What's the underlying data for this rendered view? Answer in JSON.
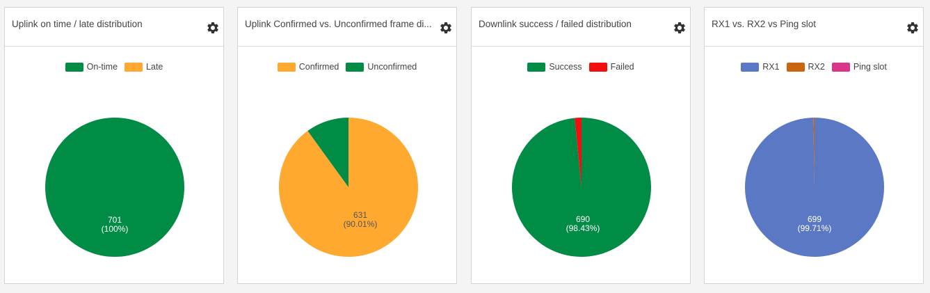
{
  "panels": [
    {
      "title": "Uplink on time / late distribution",
      "settings_icon": "gear-icon",
      "legend": [
        {
          "label": "On-time",
          "color": "#008c45"
        },
        {
          "label": "Late",
          "color": "#ffa931"
        }
      ]
    },
    {
      "title": "Uplink Confirmed vs. Unconfirmed frame di...",
      "settings_icon": "gear-icon",
      "legend": [
        {
          "label": "Confirmed",
          "color": "#ffa931"
        },
        {
          "label": "Unconfirmed",
          "color": "#008c45"
        }
      ]
    },
    {
      "title": "Downlink success / failed distribution",
      "settings_icon": "gear-icon",
      "legend": [
        {
          "label": "Success",
          "color": "#008c45"
        },
        {
          "label": "Failed",
          "color": "#f20f0f"
        }
      ]
    },
    {
      "title": "RX1 vs. RX2 vs Ping slot",
      "settings_icon": "gear-icon",
      "legend": [
        {
          "label": "RX1",
          "color": "#5b78c4"
        },
        {
          "label": "RX2",
          "color": "#c9650f"
        },
        {
          "label": "Ping slot",
          "color": "#d9378a"
        }
      ]
    }
  ],
  "chart_data": [
    {
      "type": "pie",
      "categories": [
        "On-time",
        "Late"
      ],
      "values": [
        701,
        0
      ],
      "colors": [
        "#008c45",
        "#ffa931"
      ],
      "labels": [
        {
          "category": "On-time",
          "value_text": "701",
          "percent_text": "(100%)",
          "text_color": "#ffffff"
        }
      ]
    },
    {
      "type": "pie",
      "categories": [
        "Confirmed",
        "Unconfirmed"
      ],
      "values": [
        631,
        70
      ],
      "colors": [
        "#ffa931",
        "#008c45"
      ],
      "labels": [
        {
          "category": "Confirmed",
          "value_text": "631",
          "percent_text": "(90.01%)",
          "text_color": "#555555"
        }
      ]
    },
    {
      "type": "pie",
      "categories": [
        "Success",
        "Failed"
      ],
      "values": [
        690,
        11
      ],
      "colors": [
        "#008c45",
        "#f20f0f"
      ],
      "labels": [
        {
          "category": "Success",
          "value_text": "690",
          "percent_text": "(98.43%)",
          "text_color": "#ffffff"
        }
      ]
    },
    {
      "type": "pie",
      "categories": [
        "RX1",
        "RX2",
        "Ping slot"
      ],
      "values": [
        699,
        2,
        0
      ],
      "colors": [
        "#5b78c4",
        "#c9650f",
        "#d9378a"
      ],
      "labels": [
        {
          "category": "RX1",
          "value_text": "699",
          "percent_text": "(99.71%)",
          "text_color": "#ffffff"
        }
      ]
    }
  ]
}
